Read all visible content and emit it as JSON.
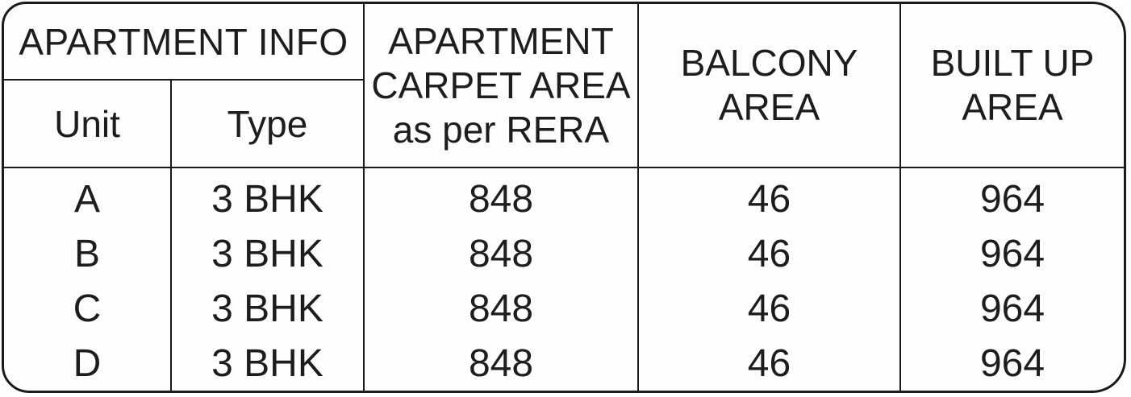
{
  "table": {
    "header": {
      "apartment_info": "APARTMENT INFO",
      "unit": "Unit",
      "type": "Type",
      "carpet_line1": "APARTMENT",
      "carpet_line2": "CARPET AREA",
      "carpet_line3": "as per RERA",
      "balcony_line1": "BALCONY",
      "balcony_line2": "AREA",
      "builtup_line1": "BUILT UP",
      "builtup_line2": "AREA"
    },
    "rows": [
      {
        "unit": "A",
        "type": "3 BHK",
        "carpet": "848",
        "balcony": "46",
        "builtup": "964"
      },
      {
        "unit": "B",
        "type": "3 BHK",
        "carpet": "848",
        "balcony": "46",
        "builtup": "964"
      },
      {
        "unit": "C",
        "type": "3 BHK",
        "carpet": "848",
        "balcony": "46",
        "builtup": "964"
      },
      {
        "unit": "D",
        "type": "3 BHK",
        "carpet": "848",
        "balcony": "46",
        "builtup": "964"
      }
    ],
    "colors": {
      "line": "#1a1a1a",
      "text": "#1d1d1d",
      "background": "#fdfdfd"
    }
  }
}
